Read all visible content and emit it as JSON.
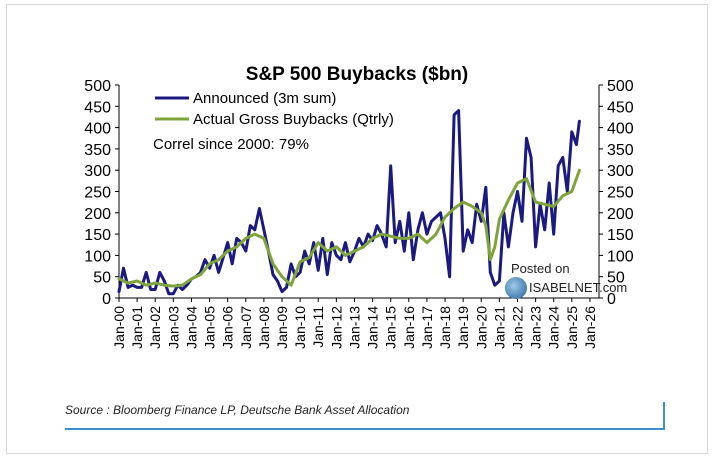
{
  "source_note": "Source : Bloomberg Finance LP, Deutsche Bank Asset Allocation",
  "watermark": {
    "posted_on": "Posted on",
    "site": "ISABELNET.com"
  },
  "colors": {
    "announced": "#1a1a80",
    "actual": "#7ea43a",
    "axis": "#000000"
  },
  "chart_data": {
    "type": "line",
    "title": "S&P 500 Buybacks ($bn)",
    "annotation": "Correl since 2000: 79%",
    "xlabel": "",
    "ylabel": "",
    "ylabel_right": "",
    "ylim": [
      0,
      500
    ],
    "y_ticks": [
      0,
      50,
      100,
      150,
      200,
      250,
      300,
      350,
      400,
      450,
      500
    ],
    "y_tick_labels": [
      "0",
      "50",
      "100",
      "150",
      "200",
      "250",
      "300",
      "350",
      "400",
      "450",
      "500"
    ],
    "x_range": [
      2000,
      2026.5
    ],
    "x_ticks": [
      2000,
      2001,
      2002,
      2003,
      2004,
      2005,
      2006,
      2007,
      2008,
      2009,
      2010,
      2011,
      2012,
      2013,
      2014,
      2015,
      2016,
      2017,
      2018,
      2019,
      2020,
      2021,
      2022,
      2023,
      2024,
      2025,
      2026
    ],
    "x_tick_labels": [
      "Jan-00",
      "Jan-01",
      "Jan-02",
      "Jan-03",
      "Jan-04",
      "Jan-05",
      "Jan-06",
      "Jan-07",
      "Jan-08",
      "Jan-09",
      "Jan-10",
      "Jan-11",
      "Jan-12",
      "Jan-13",
      "Jan-14",
      "Jan-15",
      "Jan-16",
      "Jan-17",
      "Jan-18",
      "Jan-19",
      "Jan-20",
      "Jan-21",
      "Jan-22",
      "Jan-23",
      "Jan-24",
      "Jan-25",
      "Jan-26"
    ],
    "legend_placement": "top-left",
    "grid": false,
    "series": [
      {
        "name": "Announced (3m sum)",
        "x": [
          2000.0,
          2000.25,
          2000.5,
          2000.75,
          2001.0,
          2001.25,
          2001.5,
          2001.75,
          2002.0,
          2002.25,
          2002.5,
          2002.75,
          2003.0,
          2003.25,
          2003.5,
          2003.75,
          2004.0,
          2004.25,
          2004.5,
          2004.75,
          2005.0,
          2005.25,
          2005.5,
          2005.75,
          2006.0,
          2006.25,
          2006.5,
          2006.75,
          2007.0,
          2007.25,
          2007.5,
          2007.75,
          2008.0,
          2008.25,
          2008.5,
          2008.75,
          2009.0,
          2009.25,
          2009.5,
          2009.75,
          2010.0,
          2010.25,
          2010.5,
          2010.75,
          2011.0,
          2011.25,
          2011.5,
          2011.75,
          2012.0,
          2012.25,
          2012.5,
          2012.75,
          2013.0,
          2013.25,
          2013.5,
          2013.75,
          2014.0,
          2014.25,
          2014.5,
          2014.75,
          2015.0,
          2015.25,
          2015.5,
          2015.75,
          2016.0,
          2016.25,
          2016.5,
          2016.75,
          2017.0,
          2017.25,
          2017.5,
          2017.75,
          2018.0,
          2018.25,
          2018.5,
          2018.75,
          2019.0,
          2019.25,
          2019.5,
          2019.75,
          2020.0,
          2020.25,
          2020.5,
          2020.75,
          2021.0,
          2021.25,
          2021.5,
          2021.75,
          2022.0,
          2022.25,
          2022.5,
          2022.75,
          2023.0,
          2023.25,
          2023.5,
          2023.75,
          2024.0,
          2024.25,
          2024.5,
          2024.75,
          2025.0,
          2025.25,
          2025.42
        ],
        "y": [
          15,
          70,
          25,
          30,
          25,
          25,
          60,
          20,
          20,
          60,
          40,
          10,
          10,
          30,
          20,
          30,
          45,
          50,
          60,
          90,
          70,
          100,
          60,
          95,
          130,
          80,
          140,
          130,
          110,
          170,
          160,
          210,
          160,
          110,
          55,
          40,
          15,
          25,
          80,
          50,
          60,
          110,
          80,
          130,
          65,
          140,
          55,
          130,
          100,
          90,
          130,
          85,
          110,
          140,
          120,
          150,
          135,
          170,
          150,
          120,
          310,
          130,
          180,
          110,
          200,
          90,
          160,
          200,
          150,
          180,
          190,
          200,
          140,
          50,
          430,
          440,
          110,
          160,
          130,
          220,
          180,
          260,
          60,
          30,
          40,
          200,
          120,
          200,
          250,
          180,
          375,
          330,
          120,
          220,
          160,
          270,
          150,
          310,
          330,
          250,
          390,
          360,
          415
        ]
      },
      {
        "name": "Actual Gross Buybacks (Qtrly)",
        "x": [
          2000.0,
          2000.5,
          2001.0,
          2001.5,
          2002.0,
          2002.5,
          2003.0,
          2003.5,
          2004.0,
          2004.5,
          2005.0,
          2005.5,
          2006.0,
          2006.5,
          2007.0,
          2007.5,
          2008.0,
          2008.5,
          2009.0,
          2009.5,
          2010.0,
          2010.5,
          2011.0,
          2011.5,
          2012.0,
          2012.5,
          2013.0,
          2013.5,
          2014.0,
          2014.5,
          2015.0,
          2015.5,
          2016.0,
          2016.5,
          2017.0,
          2017.5,
          2018.0,
          2018.5,
          2019.0,
          2019.5,
          2020.0,
          2020.25,
          2020.5,
          2020.75,
          2021.0,
          2021.5,
          2022.0,
          2022.5,
          2023.0,
          2023.5,
          2024.0,
          2024.5,
          2025.0,
          2025.42
        ],
        "y": [
          45,
          35,
          40,
          30,
          35,
          30,
          28,
          30,
          45,
          55,
          80,
          90,
          110,
          120,
          140,
          150,
          140,
          80,
          50,
          30,
          85,
          95,
          130,
          110,
          120,
          100,
          110,
          120,
          140,
          150,
          145,
          140,
          140,
          150,
          130,
          150,
          190,
          210,
          225,
          215,
          200,
          170,
          90,
          120,
          185,
          230,
          270,
          280,
          225,
          220,
          215,
          240,
          250,
          300
        ]
      }
    ]
  }
}
